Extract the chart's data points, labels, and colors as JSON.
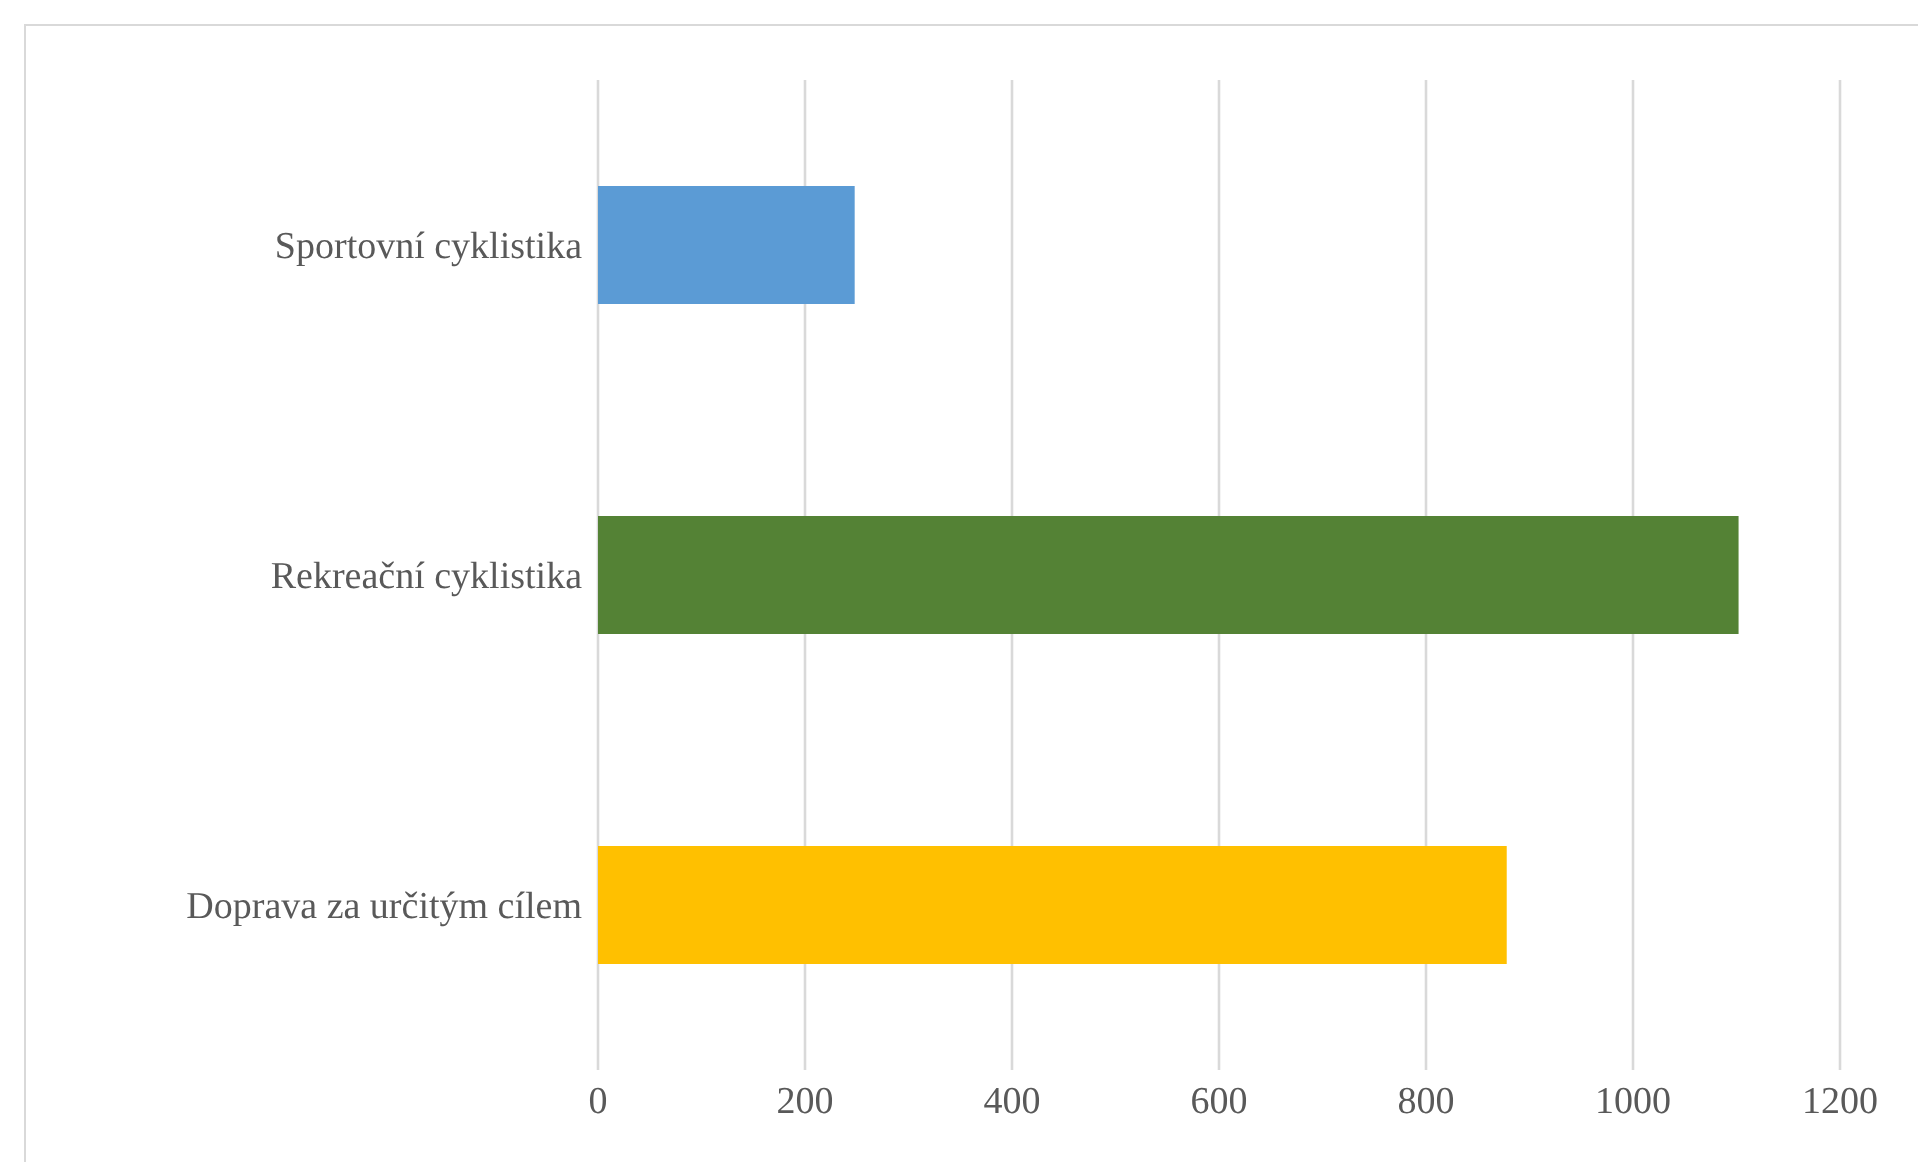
{
  "chart_data": {
    "type": "bar",
    "orientation": "horizontal",
    "categories": [
      "Sportovní cyklistika",
      "Rekreační cyklistika",
      "Doprava za určitým cílem"
    ],
    "values": [
      248,
      1102,
      878
    ],
    "colors": [
      "#5b9bd5",
      "#548235",
      "#ffc000"
    ],
    "xlim": [
      0,
      1200
    ],
    "xticks": [
      0,
      200,
      400,
      600,
      800,
      1000,
      1200
    ],
    "grid": "x"
  }
}
